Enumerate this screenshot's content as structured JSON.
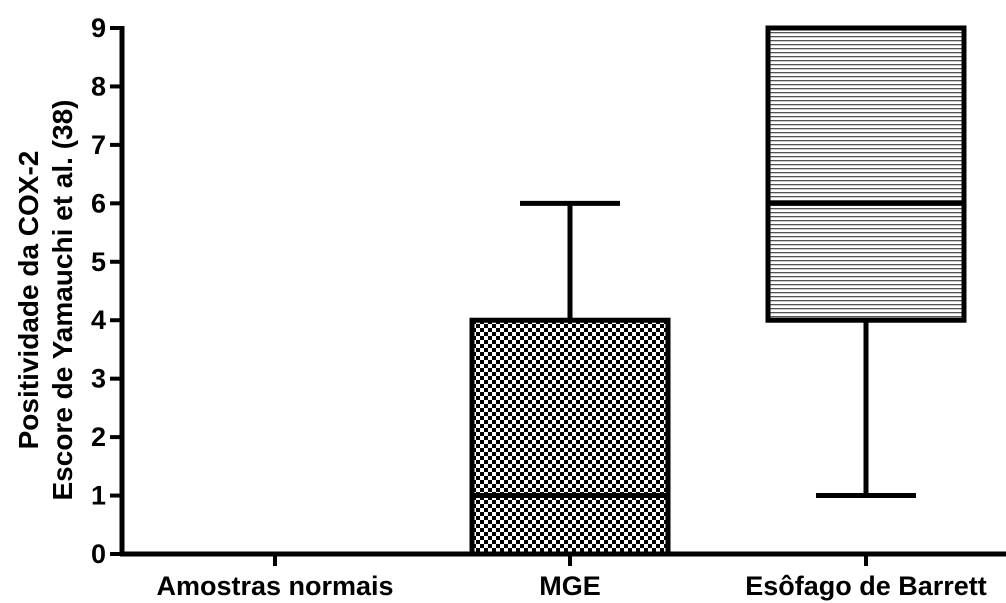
{
  "chart_data": {
    "type": "box",
    "categories": [
      "Amostras normais",
      "MGE",
      "Esôfago de Barrett"
    ],
    "ylabel_lines": [
      "Positividade da COX-2",
      "Escore de Yamauchi et al. (38)"
    ],
    "xlabel": "",
    "ylim": [
      0,
      9
    ],
    "yticks": [
      "0",
      "1",
      "2",
      "3",
      "4",
      "5",
      "6",
      "7",
      "8",
      "9"
    ],
    "boxes": [
      {
        "category": "Amostras normais",
        "min": 0,
        "q1": 0,
        "median": 0,
        "q3": 0,
        "max": 0,
        "fill": "none"
      },
      {
        "category": "MGE",
        "min": 0,
        "q1": 0,
        "median": 1,
        "q3": 4,
        "max": 6,
        "fill": "checkerboard"
      },
      {
        "category": "Esôfago de Barrett",
        "min": 1,
        "q1": 4,
        "median": 6,
        "q3": 9,
        "max": 9,
        "fill": "horizontal-lines"
      }
    ],
    "grid": false,
    "legend": "none"
  }
}
